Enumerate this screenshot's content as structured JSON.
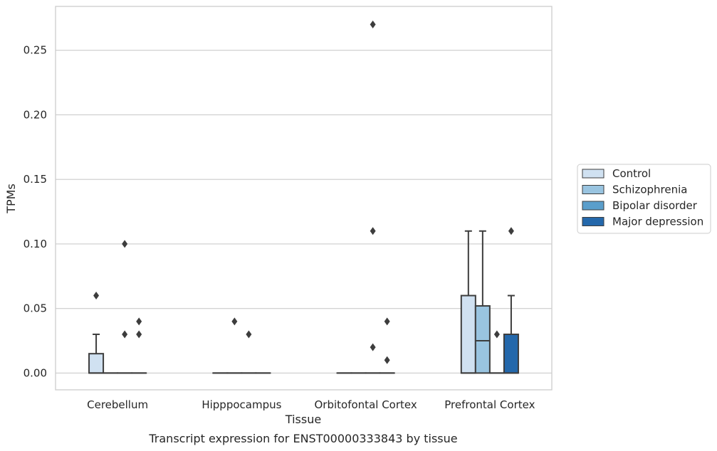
{
  "caption": "Transcript expression for ENST00000333843 by tissue",
  "chart_data": {
    "type": "box",
    "title": "",
    "xlabel": "Tissue",
    "ylabel": "TPMs",
    "ylim": [
      -0.013,
      0.284
    ],
    "yticks": [
      0.0,
      0.05,
      0.1,
      0.15,
      0.2,
      0.25
    ],
    "ytick_labels": [
      "0.00",
      "0.05",
      "0.10",
      "0.15",
      "0.20",
      "0.25"
    ],
    "grid": "horizontal",
    "legend_position": "right",
    "categories": [
      "Cerebellum",
      "Hipppocampus",
      "Orbitofontal Cortex",
      "Prefrontal Cortex"
    ],
    "series": [
      {
        "name": "Control",
        "color": "#d0e1f1",
        "boxes": [
          {
            "q1": 0.0,
            "median": 0.0,
            "q3": 0.015,
            "whisker_low": 0.0,
            "whisker_high": 0.03,
            "outliers": [
              0.06
            ]
          },
          {
            "q1": 0.0,
            "median": 0.0,
            "q3": 0.0,
            "whisker_low": 0.0,
            "whisker_high": 0.0,
            "outliers": []
          },
          {
            "q1": 0.0,
            "median": 0.0,
            "q3": 0.0,
            "whisker_low": 0.0,
            "whisker_high": 0.0,
            "outliers": []
          },
          {
            "q1": 0.0,
            "median": 0.0,
            "q3": 0.06,
            "whisker_low": 0.0,
            "whisker_high": 0.11,
            "outliers": []
          }
        ]
      },
      {
        "name": "Schizophrenia",
        "color": "#99c4e0",
        "boxes": [
          {
            "q1": 0.0,
            "median": 0.0,
            "q3": 0.0,
            "whisker_low": 0.0,
            "whisker_high": 0.0,
            "outliers": []
          },
          {
            "q1": 0.0,
            "median": 0.0,
            "q3": 0.0,
            "whisker_low": 0.0,
            "whisker_high": 0.0,
            "outliers": [
              0.04
            ]
          },
          {
            "q1": 0.0,
            "median": 0.0,
            "q3": 0.0,
            "whisker_low": 0.0,
            "whisker_high": 0.0,
            "outliers": []
          },
          {
            "q1": 0.0,
            "median": 0.025,
            "q3": 0.052,
            "whisker_low": 0.0,
            "whisker_high": 0.11,
            "outliers": []
          }
        ]
      },
      {
        "name": "Bipolar disorder",
        "color": "#5a9ecb",
        "boxes": [
          {
            "q1": 0.0,
            "median": 0.0,
            "q3": 0.0,
            "whisker_low": 0.0,
            "whisker_high": 0.0,
            "outliers": [
              0.03,
              0.1
            ]
          },
          {
            "q1": 0.0,
            "median": 0.0,
            "q3": 0.0,
            "whisker_low": 0.0,
            "whisker_high": 0.0,
            "outliers": [
              0.03
            ]
          },
          {
            "q1": 0.0,
            "median": 0.0,
            "q3": 0.0,
            "whisker_low": 0.0,
            "whisker_high": 0.0,
            "outliers": [
              0.02,
              0.11,
              0.27
            ]
          },
          {
            "q1": 0.0,
            "median": 0.0,
            "q3": 0.0,
            "whisker_low": 0.0,
            "whisker_high": 0.0,
            "outliers": [
              0.03
            ]
          }
        ]
      },
      {
        "name": "Major depression",
        "color": "#2468ab",
        "boxes": [
          {
            "q1": 0.0,
            "median": 0.0,
            "q3": 0.0,
            "whisker_low": 0.0,
            "whisker_high": 0.0,
            "outliers": [
              0.03,
              0.04
            ]
          },
          {
            "q1": 0.0,
            "median": 0.0,
            "q3": 0.0,
            "whisker_low": 0.0,
            "whisker_high": 0.0,
            "outliers": []
          },
          {
            "q1": 0.0,
            "median": 0.0,
            "q3": 0.0,
            "whisker_low": 0.0,
            "whisker_high": 0.0,
            "outliers": [
              0.01,
              0.04
            ]
          },
          {
            "q1": 0.0,
            "median": 0.0,
            "q3": 0.03,
            "whisker_low": 0.0,
            "whisker_high": 0.06,
            "outliers": [
              0.11
            ]
          }
        ]
      }
    ]
  }
}
